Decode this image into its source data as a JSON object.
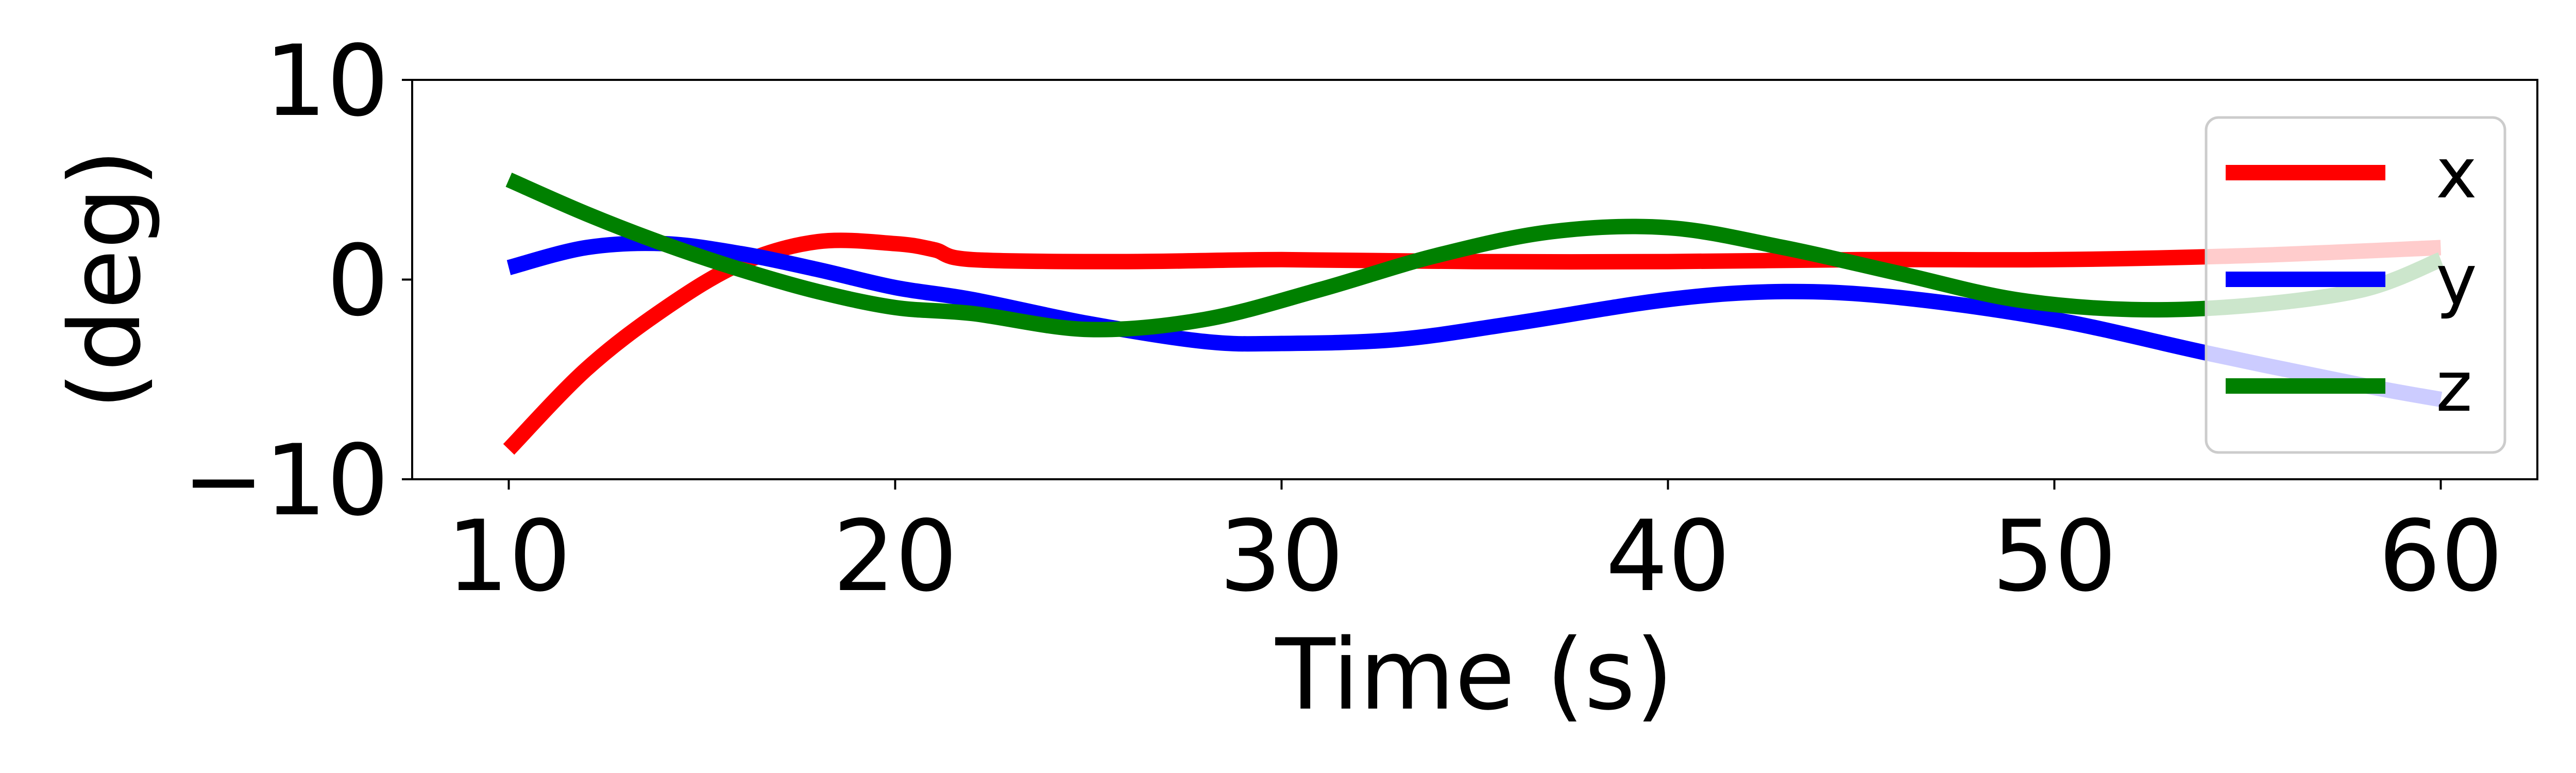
{
  "chart_data": {
    "type": "line",
    "title": "",
    "xlabel": "Time (s)",
    "ylabel": "(deg)",
    "xlim": [
      7.5,
      62.5
    ],
    "ylim": [
      -10,
      10
    ],
    "xticks": [
      10,
      20,
      30,
      40,
      50,
      60
    ],
    "yticks": [
      -10,
      0,
      10
    ],
    "ytick_labels": [
      "−10",
      "0",
      "10"
    ],
    "grid": false,
    "legend_position": "right",
    "series": [
      {
        "name": "x",
        "color": "#ff0000",
        "x": [
          10,
          12,
          14,
          16,
          18,
          20,
          21,
          22,
          26,
          30,
          35,
          40,
          45,
          50,
          55,
          60
        ],
        "y": [
          -8.5,
          -4.5,
          -1.5,
          0.8,
          1.9,
          1.8,
          1.5,
          1.0,
          0.9,
          1.0,
          0.9,
          0.9,
          1.0,
          1.0,
          1.2,
          1.6
        ]
      },
      {
        "name": "y",
        "color": "#0000ff",
        "x": [
          10,
          12,
          14,
          16,
          18,
          20,
          22,
          25,
          28,
          30,
          33,
          36,
          40,
          43,
          46,
          50,
          54,
          58,
          60
        ],
        "y": [
          0.6,
          1.6,
          1.8,
          1.3,
          0.5,
          -0.4,
          -1.0,
          -2.2,
          -3.1,
          -3.2,
          -3.0,
          -2.2,
          -1.0,
          -0.6,
          -0.9,
          -2.0,
          -3.7,
          -5.3,
          -6.0
        ]
      },
      {
        "name": "z",
        "color": "#008000",
        "x": [
          10,
          12,
          14,
          16,
          18,
          20,
          22,
          25,
          28,
          31,
          34,
          37,
          40,
          43,
          46,
          49,
          52,
          55,
          58,
          60
        ],
        "y": [
          5.0,
          3.3,
          1.8,
          0.5,
          -0.6,
          -1.4,
          -1.7,
          -2.5,
          -2.0,
          -0.5,
          1.2,
          2.4,
          2.6,
          1.6,
          0.3,
          -1.0,
          -1.5,
          -1.3,
          -0.5,
          1.0
        ]
      }
    ]
  }
}
